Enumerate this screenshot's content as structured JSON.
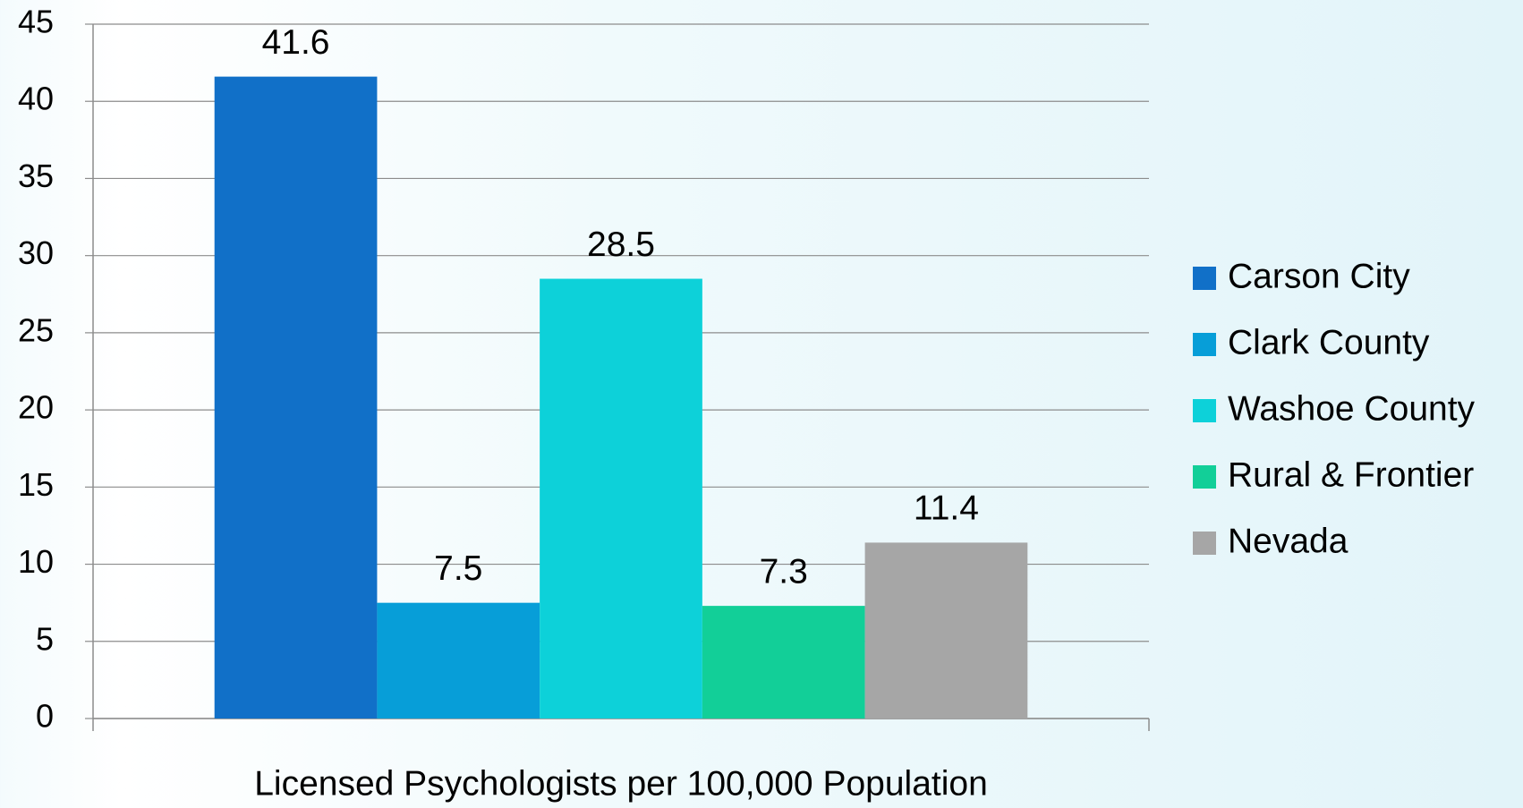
{
  "chart_data": {
    "type": "bar",
    "categories": [
      "Licensed Psychologists per 100,000 Population"
    ],
    "series": [
      {
        "name": "Carson City",
        "color": "#1170c8",
        "values": [
          41.6
        ]
      },
      {
        "name": "Clark County",
        "color": "#079ed8",
        "values": [
          7.5
        ]
      },
      {
        "name": "Washoe County",
        "color": "#0dd1d9",
        "values": [
          28.5
        ]
      },
      {
        "name": "Rural & Frontier",
        "color": "#12cf98",
        "values": [
          7.3
        ]
      },
      {
        "name": "Nevada",
        "color": "#a6a6a6",
        "values": [
          11.4
        ]
      }
    ],
    "ylim": [
      0,
      45
    ],
    "yticks": [
      0,
      5,
      10,
      15,
      20,
      25,
      30,
      35,
      40,
      45
    ],
    "grid": true,
    "legend": "right"
  }
}
